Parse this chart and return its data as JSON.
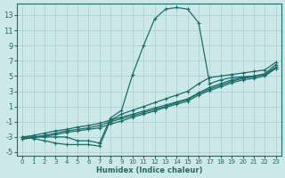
{
  "xlabel": "Humidex (Indice chaleur)",
  "xlim": [
    -0.5,
    23.5
  ],
  "ylim": [
    -5.5,
    14.5
  ],
  "xticks": [
    0,
    1,
    2,
    3,
    4,
    5,
    6,
    7,
    8,
    9,
    10,
    11,
    12,
    13,
    14,
    15,
    16,
    17,
    18,
    19,
    20,
    21,
    22,
    23
  ],
  "yticks": [
    -5,
    -3,
    -1,
    1,
    3,
    5,
    7,
    9,
    11,
    13
  ],
  "bg_color": "#cce8e8",
  "grid_color": "#aacece",
  "line_color": "#1a6e6a",
  "curves": [
    {
      "x": [
        0,
        1,
        2,
        3,
        4,
        5,
        6,
        7,
        8,
        9,
        10,
        11,
        12,
        13,
        14,
        15,
        16,
        17,
        18,
        19,
        20,
        21,
        22,
        23
      ],
      "y": [
        -3.0,
        -3.0,
        -3.0,
        -3.0,
        -3.0,
        -3.5,
        -3.5,
        -3.8,
        -0.5,
        0.5,
        5.2,
        9.0,
        12.5,
        13.8,
        14.0,
        13.8,
        12.0,
        4.0,
        4.5,
        4.8,
        4.9,
        5.0,
        5.2,
        6.0
      ]
    },
    {
      "x": [
        0,
        1,
        2,
        3,
        4,
        5,
        6,
        7,
        8,
        9,
        10,
        11,
        12,
        13,
        14,
        15,
        16,
        17,
        18,
        19,
        20,
        21,
        22,
        23
      ],
      "y": [
        -3.0,
        -2.8,
        -2.5,
        -2.2,
        -2.0,
        -1.7,
        -1.5,
        -1.2,
        -0.8,
        -0.4,
        0.0,
        0.4,
        0.8,
        1.2,
        1.6,
        2.0,
        2.8,
        3.5,
        4.0,
        4.5,
        4.8,
        5.0,
        5.3,
        6.5
      ]
    },
    {
      "x": [
        0,
        1,
        2,
        3,
        4,
        5,
        6,
        7,
        8,
        9,
        10,
        11,
        12,
        13,
        14,
        15,
        16,
        17,
        18,
        19,
        20,
        21,
        22,
        23
      ],
      "y": [
        -3.2,
        -3.0,
        -2.8,
        -2.5,
        -2.2,
        -2.0,
        -1.8,
        -1.5,
        -1.0,
        -0.6,
        -0.2,
        0.2,
        0.6,
        1.0,
        1.5,
        1.9,
        2.7,
        3.3,
        3.8,
        4.3,
        4.7,
        4.9,
        5.2,
        6.2
      ]
    },
    {
      "x": [
        0,
        1,
        2,
        3,
        4,
        5,
        6,
        7,
        8,
        9,
        10,
        11,
        12,
        13,
        14,
        15,
        16,
        17,
        18,
        19,
        20,
        21,
        22,
        23
      ],
      "y": [
        -3.3,
        -3.1,
        -2.9,
        -2.7,
        -2.4,
        -2.2,
        -2.0,
        -1.8,
        -1.3,
        -0.9,
        -0.4,
        0.0,
        0.4,
        0.9,
        1.3,
        1.7,
        2.5,
        3.1,
        3.6,
        4.1,
        4.5,
        4.7,
        5.0,
        6.0
      ]
    },
    {
      "x": [
        0,
        1,
        2,
        3,
        4,
        5,
        6,
        7,
        8,
        9,
        10,
        11,
        12,
        13,
        14,
        15,
        16,
        17,
        18,
        19,
        20,
        21,
        22,
        23
      ],
      "y": [
        -3.0,
        -3.2,
        -3.5,
        -3.8,
        -4.0,
        -4.0,
        -4.0,
        -4.2,
        -0.8,
        0.0,
        0.5,
        1.0,
        1.5,
        2.0,
        2.5,
        3.0,
        4.0,
        4.8,
        5.0,
        5.2,
        5.4,
        5.6,
        5.8,
        6.8
      ]
    }
  ]
}
